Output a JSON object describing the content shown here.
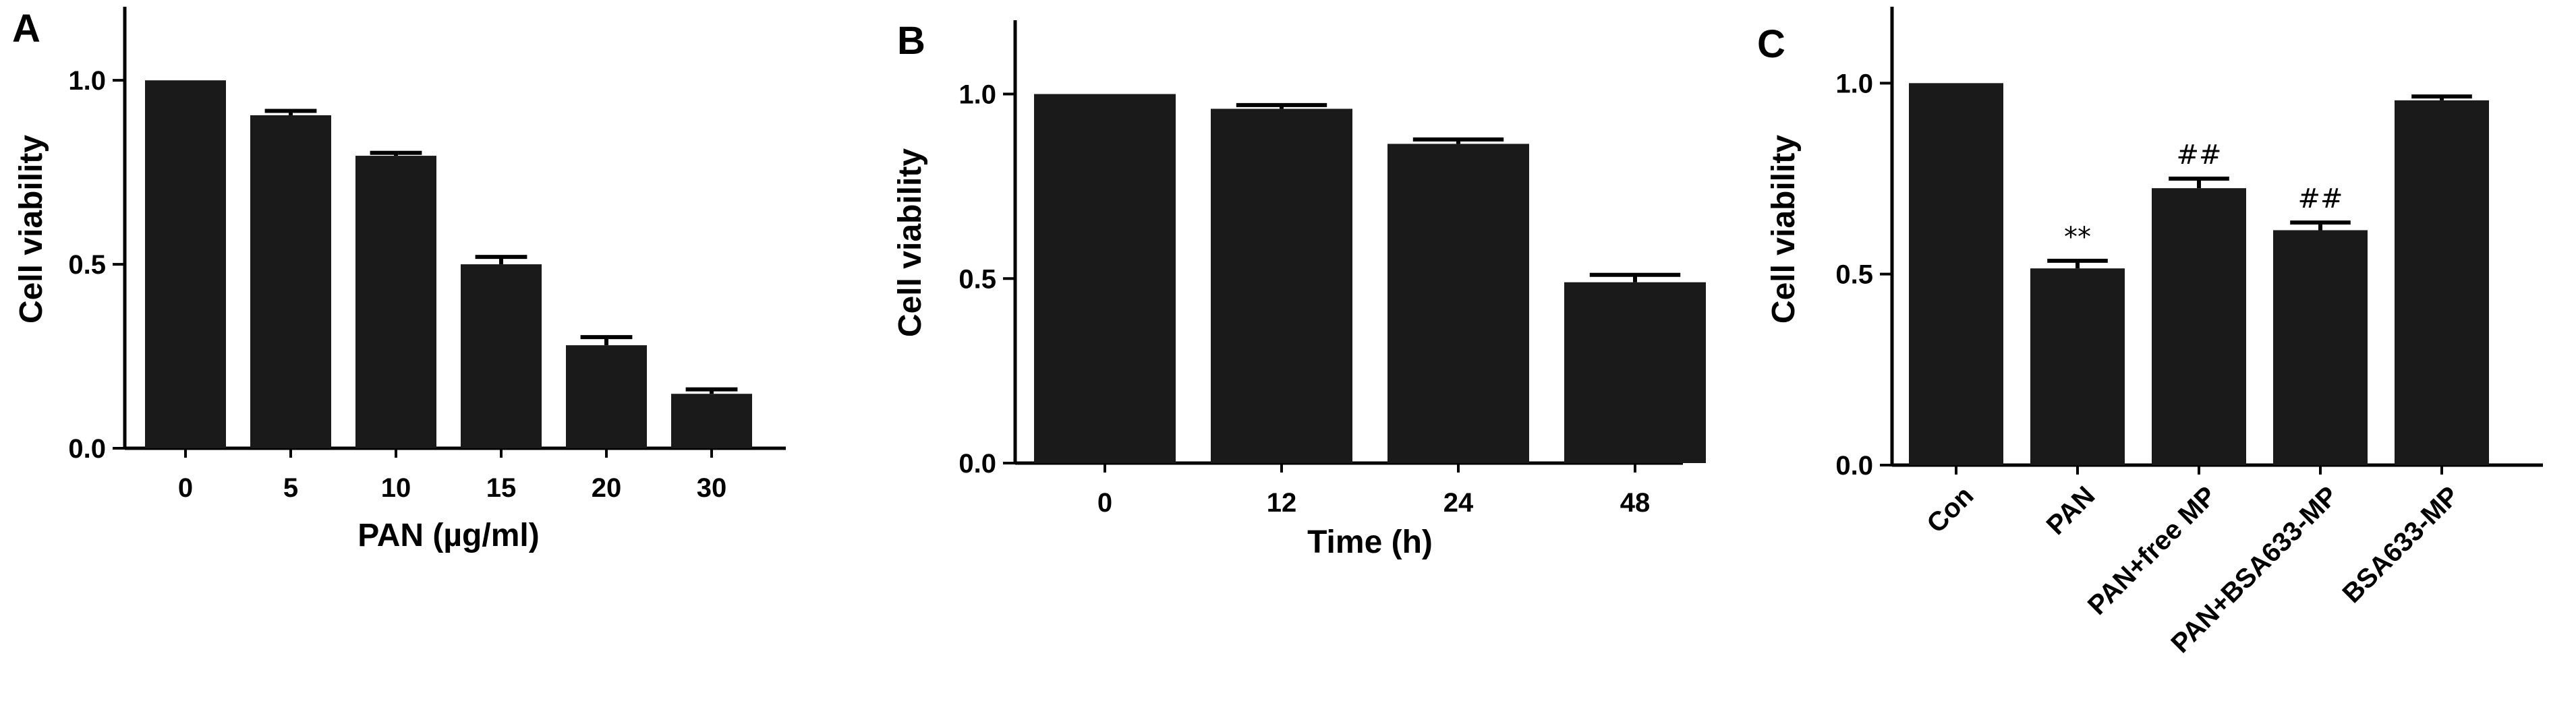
{
  "chart_data": [
    {
      "panel": "A",
      "type": "bar",
      "categories": [
        "0",
        "5",
        "10",
        "15",
        "20",
        "30"
      ],
      "values": [
        1.0,
        0.905,
        0.795,
        0.5,
        0.28,
        0.148
      ],
      "errors": [
        0.0,
        0.012,
        0.008,
        0.02,
        0.022,
        0.012
      ],
      "annotations": [
        "",
        "",
        "",
        "",
        "",
        ""
      ],
      "ylabel": "Cell viability",
      "xlabel": "PAN (µg/ml)",
      "yticks": [
        "0.0",
        "0.5",
        "1.0"
      ],
      "ylim": [
        0,
        1.2
      ],
      "bar_color": "#1a1a1a"
    },
    {
      "panel": "B",
      "type": "bar",
      "categories": [
        "0",
        "12",
        "24",
        "48"
      ],
      "values": [
        1.0,
        0.96,
        0.865,
        0.49
      ],
      "errors": [
        0.0,
        0.01,
        0.012,
        0.02
      ],
      "annotations": [
        "",
        "",
        "",
        ""
      ],
      "ylabel": "Cell viability",
      "xlabel": "Time (h)",
      "yticks": [
        "0.0",
        "0.5",
        "1.0"
      ],
      "ylim": [
        0,
        1.2
      ],
      "bar_color": "#1a1a1a"
    },
    {
      "panel": "C",
      "type": "bar",
      "categories": [
        "Con",
        "PAN",
        "PAN+free MP",
        "PAN+BSA633-MP",
        "BSA633-MP"
      ],
      "values": [
        1.0,
        0.515,
        0.725,
        0.615,
        0.955
      ],
      "errors": [
        0.0,
        0.02,
        0.025,
        0.02,
        0.01
      ],
      "annotations": [
        "",
        "**",
        "##",
        "##",
        ""
      ],
      "ylabel": "Cell viability",
      "xlabel": "",
      "yticks": [
        "0.0",
        "0.5",
        "1.0"
      ],
      "ylim": [
        0,
        1.2
      ],
      "bar_color": "#1a1a1a"
    }
  ]
}
